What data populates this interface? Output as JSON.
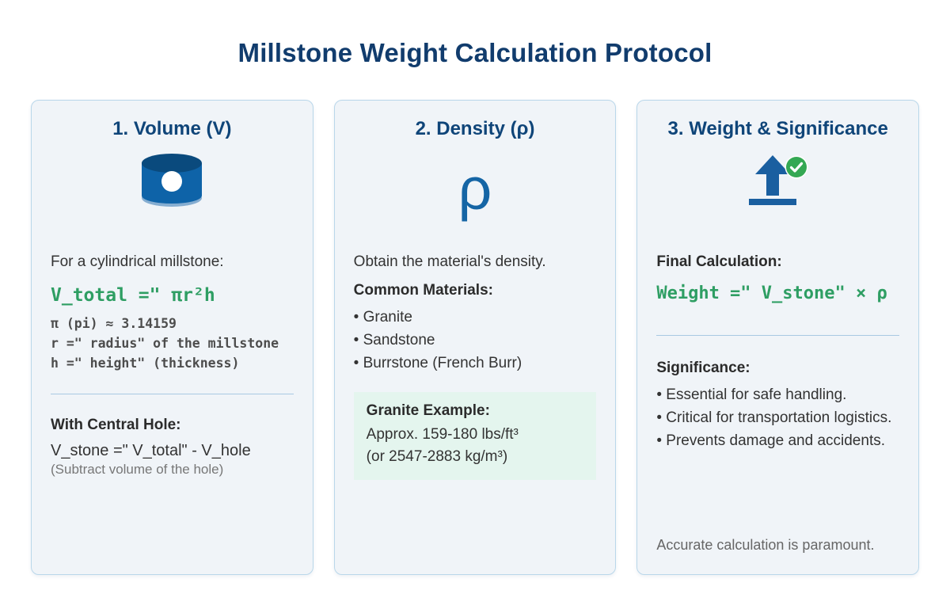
{
  "page": {
    "title": "Millstone Weight Calculation Protocol"
  },
  "card1": {
    "title": "1. Volume (V)",
    "icon": "millstone-icon",
    "lead": "For a cylindrical millstone:",
    "formula_green": "V_total =\" πr²h",
    "code_lines": {
      "pi": "π (pi) ≈ 3.14159",
      "r": "r =\" radius\" of the millstone",
      "h": "h =\" height\" (thickness)"
    },
    "hole_heading": "With Central Hole:",
    "hole_formula": "V_stone =\" V_total\" - V_hole",
    "hole_note": "(Subtract volume of the hole)"
  },
  "card2": {
    "title": "2. Density (ρ)",
    "icon": "rho-symbol",
    "rho_glyph": "ρ",
    "lead": "Obtain the material's density.",
    "materials_heading": "Common Materials:",
    "materials": [
      "• Granite",
      "• Sandstone",
      "• Burrstone (French Burr)"
    ],
    "example": {
      "heading": "Granite Example:",
      "line1": "Approx. 159-180 lbs/ft³",
      "line2": "(or 2547-2883 kg/m³)"
    }
  },
  "card3": {
    "title": "3. Weight & Significance",
    "icon": "upload-arrow-check-icon",
    "calc_heading": "Final Calculation:",
    "formula_green": "Weight =\" V_stone\" × ρ",
    "significance_heading": "Significance:",
    "significance": [
      "• Essential for safe handling.",
      "• Critical for transportation logistics.",
      "• Prevents damage and accidents."
    ],
    "footer_note": "Accurate calculation is paramount."
  },
  "colors": {
    "title_navy": "#113c6d",
    "card_heading_navy": "#0f4579",
    "card_background": "#f0f4f8",
    "card_border": "#b9d7ea",
    "code_green": "#2e9e63",
    "code_gray": "#4d4d4d",
    "icon_blue_body": "#0e63a8",
    "icon_blue_dark": "#0a4a7d",
    "icon_blue_light": "#85add1",
    "arrow_blue": "#1a5fa0",
    "check_green": "#34a853",
    "example_box_mint": "#e4f5ee"
  }
}
